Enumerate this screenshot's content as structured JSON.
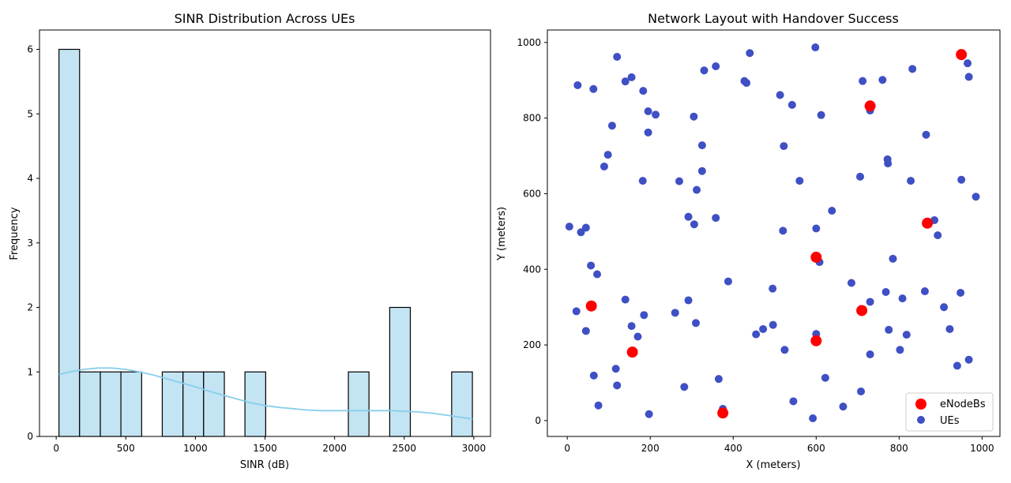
{
  "colors": {
    "hist_fill": "#c3e4f2",
    "hist_edge": "#000000",
    "kde_line": "#87ceeb",
    "enodeb": "#ff0000",
    "ue": "#3f4fc4",
    "axes": "#000000",
    "legend_border": "#cccccc"
  },
  "chart_data": [
    {
      "type": "bar",
      "subtype": "histogram",
      "title": "SINR Distribution Across UEs",
      "xlabel": "SINR (dB)",
      "ylabel": "Frequency",
      "xlim": [
        -120,
        3120
      ],
      "ylim": [
        0,
        6.3
      ],
      "xticks": [
        0,
        500,
        1000,
        1500,
        2000,
        2500,
        3000
      ],
      "yticks": [
        0,
        1,
        2,
        3,
        4,
        5,
        6
      ],
      "bins": [
        {
          "x0": 20,
          "x1": 168,
          "count": 6
        },
        {
          "x0": 168,
          "x1": 317,
          "count": 1
        },
        {
          "x0": 317,
          "x1": 465,
          "count": 1
        },
        {
          "x0": 465,
          "x1": 614,
          "count": 1
        },
        {
          "x0": 614,
          "x1": 762,
          "count": 0
        },
        {
          "x0": 762,
          "x1": 911,
          "count": 1
        },
        {
          "x0": 911,
          "x1": 1059,
          "count": 1
        },
        {
          "x0": 1059,
          "x1": 1208,
          "count": 1
        },
        {
          "x0": 1208,
          "x1": 1356,
          "count": 0
        },
        {
          "x0": 1356,
          "x1": 1505,
          "count": 1
        },
        {
          "x0": 1505,
          "x1": 1653,
          "count": 0
        },
        {
          "x0": 1653,
          "x1": 1802,
          "count": 0
        },
        {
          "x0": 1802,
          "x1": 1950,
          "count": 0
        },
        {
          "x0": 1950,
          "x1": 2099,
          "count": 0
        },
        {
          "x0": 2099,
          "x1": 2247,
          "count": 1
        },
        {
          "x0": 2247,
          "x1": 2396,
          "count": 0
        },
        {
          "x0": 2396,
          "x1": 2544,
          "count": 2
        },
        {
          "x0": 2544,
          "x1": 2693,
          "count": 0
        },
        {
          "x0": 2693,
          "x1": 2841,
          "count": 0
        },
        {
          "x0": 2841,
          "x1": 2990,
          "count": 1
        }
      ],
      "kde": {
        "x": [
          20,
          100,
          200,
          300,
          400,
          500,
          600,
          700,
          800,
          900,
          1000,
          1100,
          1200,
          1300,
          1400,
          1500,
          1600,
          1700,
          1800,
          1900,
          2000,
          2100,
          2200,
          2300,
          2400,
          2500,
          2600,
          2700,
          2800,
          2900,
          2990
        ],
        "y": [
          0.96,
          1.0,
          1.04,
          1.06,
          1.06,
          1.04,
          1.0,
          0.95,
          0.89,
          0.83,
          0.77,
          0.7,
          0.64,
          0.58,
          0.52,
          0.48,
          0.45,
          0.43,
          0.41,
          0.4,
          0.4,
          0.4,
          0.4,
          0.4,
          0.4,
          0.39,
          0.38,
          0.36,
          0.33,
          0.3,
          0.27
        ]
      }
    },
    {
      "type": "scatter",
      "title": "Network Layout with Handover Success",
      "xlabel": "X (meters)",
      "ylabel": "Y (meters)",
      "xlim": [
        -48,
        1043
      ],
      "ylim": [
        -42,
        1033
      ],
      "xticks": [
        0,
        200,
        400,
        600,
        800,
        1000
      ],
      "yticks": [
        0,
        200,
        400,
        600,
        800,
        1000
      ],
      "legend_position": "lower-right",
      "series": [
        {
          "name": "eNodeBs",
          "points": [
            [
              950,
              968
            ],
            [
              730,
              832
            ],
            [
              868,
              522
            ],
            [
              600,
              432
            ],
            [
              58,
              303
            ],
            [
              157,
              181
            ],
            [
              600,
              211
            ],
            [
              710,
              291
            ],
            [
              375,
              20
            ]
          ]
        },
        {
          "name": "UEs",
          "points": [
            [
              120,
              962
            ],
            [
              440,
              972
            ],
            [
              598,
              987
            ],
            [
              952,
              970
            ],
            [
              965,
              945
            ],
            [
              968,
              909
            ],
            [
              25,
              887
            ],
            [
              63,
              877
            ],
            [
              140,
              897
            ],
            [
              155,
              908
            ],
            [
              183,
              872
            ],
            [
              330,
              926
            ],
            [
              358,
              937
            ],
            [
              427,
              898
            ],
            [
              432,
              893
            ],
            [
              513,
              861
            ],
            [
              542,
              835
            ],
            [
              612,
              808
            ],
            [
              712,
              898
            ],
            [
              760,
              901
            ],
            [
              832,
              930
            ],
            [
              195,
              818
            ],
            [
              213,
              809
            ],
            [
              305,
              804
            ],
            [
              108,
              780
            ],
            [
              730,
              820
            ],
            [
              195,
              762
            ],
            [
              865,
              756
            ],
            [
              98,
              703
            ],
            [
              89,
              672
            ],
            [
              325,
              728
            ],
            [
              522,
              726
            ],
            [
              772,
              691
            ],
            [
              773,
              680
            ],
            [
              325,
              660
            ],
            [
              706,
              645
            ],
            [
              182,
              634
            ],
            [
              270,
              633
            ],
            [
              312,
              610
            ],
            [
              560,
              634
            ],
            [
              828,
              634
            ],
            [
              950,
              637
            ],
            [
              985,
              592
            ],
            [
              638,
              555
            ],
            [
              292,
              539
            ],
            [
              358,
              536
            ],
            [
              306,
              519
            ],
            [
              5,
              513
            ],
            [
              33,
              498
            ],
            [
              45,
              510
            ],
            [
              520,
              502
            ],
            [
              600,
              508
            ],
            [
              885,
              530
            ],
            [
              893,
              490
            ],
            [
              57,
              410
            ],
            [
              72,
              387
            ],
            [
              608,
              419
            ],
            [
              785,
              428
            ],
            [
              388,
              368
            ],
            [
              495,
              349
            ],
            [
              685,
              364
            ],
            [
              768,
              340
            ],
            [
              862,
              342
            ],
            [
              948,
              338
            ],
            [
              140,
              320
            ],
            [
              292,
              318
            ],
            [
              730,
              314
            ],
            [
              808,
              323
            ],
            [
              908,
              300
            ],
            [
              22,
              289
            ],
            [
              185,
              279
            ],
            [
              260,
              285
            ],
            [
              310,
              258
            ],
            [
              155,
              250
            ],
            [
              496,
              253
            ],
            [
              472,
              242
            ],
            [
              455,
              228
            ],
            [
              45,
              237
            ],
            [
              170,
              222
            ],
            [
              600,
              229
            ],
            [
              775,
              240
            ],
            [
              818,
              227
            ],
            [
              922,
              242
            ],
            [
              524,
              187
            ],
            [
              730,
              175
            ],
            [
              802,
              187
            ],
            [
              940,
              145
            ],
            [
              968,
              161
            ],
            [
              117,
              137
            ],
            [
              64,
              119
            ],
            [
              365,
              110
            ],
            [
              622,
              113
            ],
            [
              120,
              93
            ],
            [
              282,
              89
            ],
            [
              708,
              77
            ],
            [
              75,
              40
            ],
            [
              545,
              51
            ],
            [
              665,
              37
            ],
            [
              375,
              31
            ],
            [
              197,
              17
            ],
            [
              592,
              6
            ]
          ]
        }
      ]
    }
  ]
}
